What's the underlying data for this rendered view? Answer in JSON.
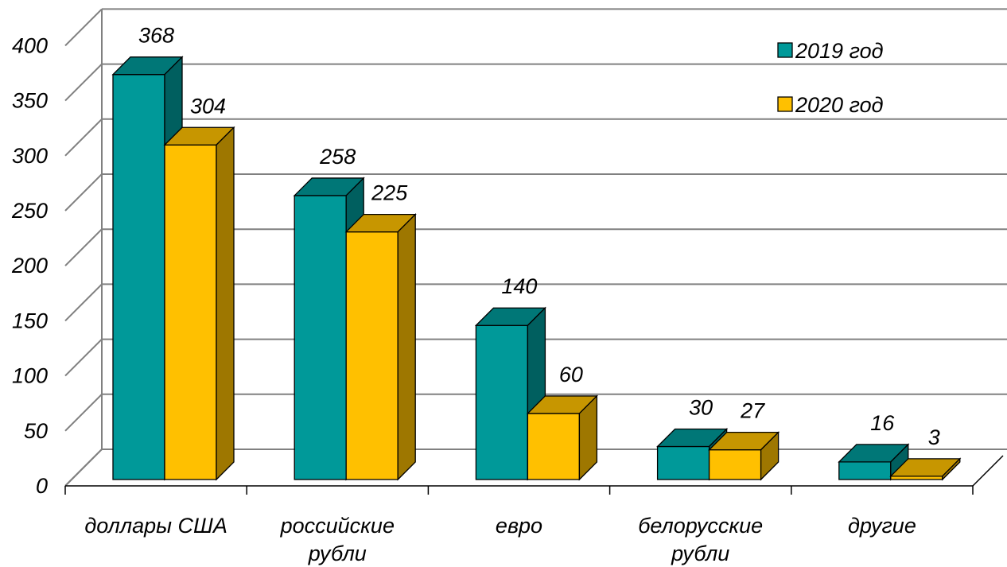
{
  "chart_data": {
    "type": "bar",
    "title": "",
    "xlabel": "",
    "ylabel": "",
    "ylim": [
      0,
      400
    ],
    "yticks": [
      0,
      50,
      100,
      150,
      200,
      250,
      300,
      350,
      400
    ],
    "grid": true,
    "legend_position": "top-right",
    "categories": [
      [
        "доллары США"
      ],
      [
        "российские",
        "рубли"
      ],
      [
        "евро"
      ],
      [
        "белорусские",
        "рубли"
      ],
      [
        "другие"
      ]
    ],
    "series": [
      {
        "name": "2019 год",
        "color": "#009999",
        "values": [
          368,
          258,
          140,
          30,
          16
        ]
      },
      {
        "name": "2020 год",
        "color": "#FFC000",
        "values": [
          304,
          225,
          60,
          27,
          3
        ]
      }
    ]
  }
}
